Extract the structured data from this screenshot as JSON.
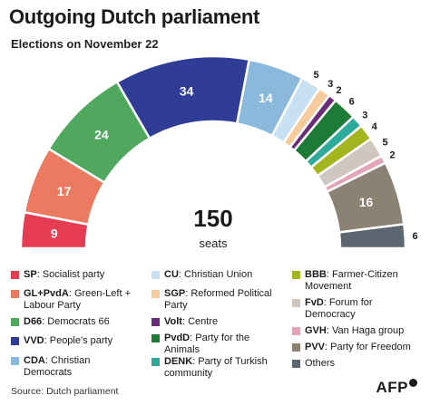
{
  "header": {
    "title": "Outgoing Dutch parliament",
    "subtitle": "Elections on November 22"
  },
  "total": {
    "value": "150",
    "unit": "seats"
  },
  "chart_data": {
    "type": "pie",
    "subtype": "semicircle-parliament",
    "title": "Outgoing Dutch parliament",
    "subtitle": "Elections on November 22",
    "total": 150,
    "series": [
      {
        "name": "SP",
        "description": "Socialist party",
        "value": 9,
        "color": "#e63c52"
      },
      {
        "name": "GL+PvdA",
        "description": "Green-Left + Labour Party",
        "value": 17,
        "color": "#ec7a60"
      },
      {
        "name": "D66",
        "description": "Democrats 66",
        "value": 24,
        "color": "#4fa85e"
      },
      {
        "name": "VVD",
        "description": "People's party",
        "value": 34,
        "color": "#2f3d96"
      },
      {
        "name": "CDA",
        "description": "Christian Democrats",
        "value": 14,
        "color": "#8ab9dc"
      },
      {
        "name": "CU",
        "description": "Christian Union",
        "value": 5,
        "color": "#c7e0f2"
      },
      {
        "name": "SGP",
        "description": "Reformed Political Party",
        "value": 3,
        "color": "#f7cc9d"
      },
      {
        "name": "Volt",
        "description": "Centre",
        "value": 2,
        "color": "#6b2d78"
      },
      {
        "name": "PvdD",
        "description": "Party for the Animals",
        "value": 6,
        "color": "#1d7a37"
      },
      {
        "name": "DENK",
        "description": "Party of Turkish community",
        "value": 3,
        "color": "#2eaa9a"
      },
      {
        "name": "BBB",
        "description": "Farmer-Citizen Movement",
        "value": 4,
        "color": "#a3b51f"
      },
      {
        "name": "FvD",
        "description": "Forum for Democracy",
        "value": 5,
        "color": "#cfc7bf"
      },
      {
        "name": "GVH",
        "description": "Van Haga group",
        "value": 2,
        "color": "#e3a4b8"
      },
      {
        "name": "PVV",
        "description": "Party for Freedom",
        "value": 16,
        "color": "#8c8274"
      },
      {
        "name": "Others",
        "description": "",
        "value": 6,
        "color": "#5c6670"
      }
    ],
    "legend_placement": "bottom"
  },
  "legend": [
    {
      "abbr": "SP",
      "text": ": Socialist party"
    },
    {
      "abbr": "GL+PvdA",
      "text": ": Green-Left + Labour Party"
    },
    {
      "abbr": "D66",
      "text": ": Democrats 66"
    },
    {
      "abbr": "VVD",
      "text": ": People's party"
    },
    {
      "abbr": "CDA",
      "text": ": Christian Democrats"
    },
    {
      "abbr": "CU",
      "text": ": Christian Union"
    },
    {
      "abbr": "SGP",
      "text": ": Reformed Political Party"
    },
    {
      "abbr": "Volt",
      "text": ": Centre"
    },
    {
      "abbr": "PvdD",
      "text": ": Party for the Animals"
    },
    {
      "abbr": "DENK",
      "text": ": Party of Turkish community"
    },
    {
      "abbr": "BBB",
      "text": ": Farmer-Citizen Movement"
    },
    {
      "abbr": "FvD",
      "text": ": Forum for Democracy"
    },
    {
      "abbr": "GVH",
      "text": ": Van Haga group"
    },
    {
      "abbr": "PVV",
      "text": ": Party for Freedom"
    },
    {
      "abbr": "",
      "text": "Others"
    }
  ],
  "footer": {
    "source": "Source: Dutch parliament",
    "brand": "AFP"
  }
}
